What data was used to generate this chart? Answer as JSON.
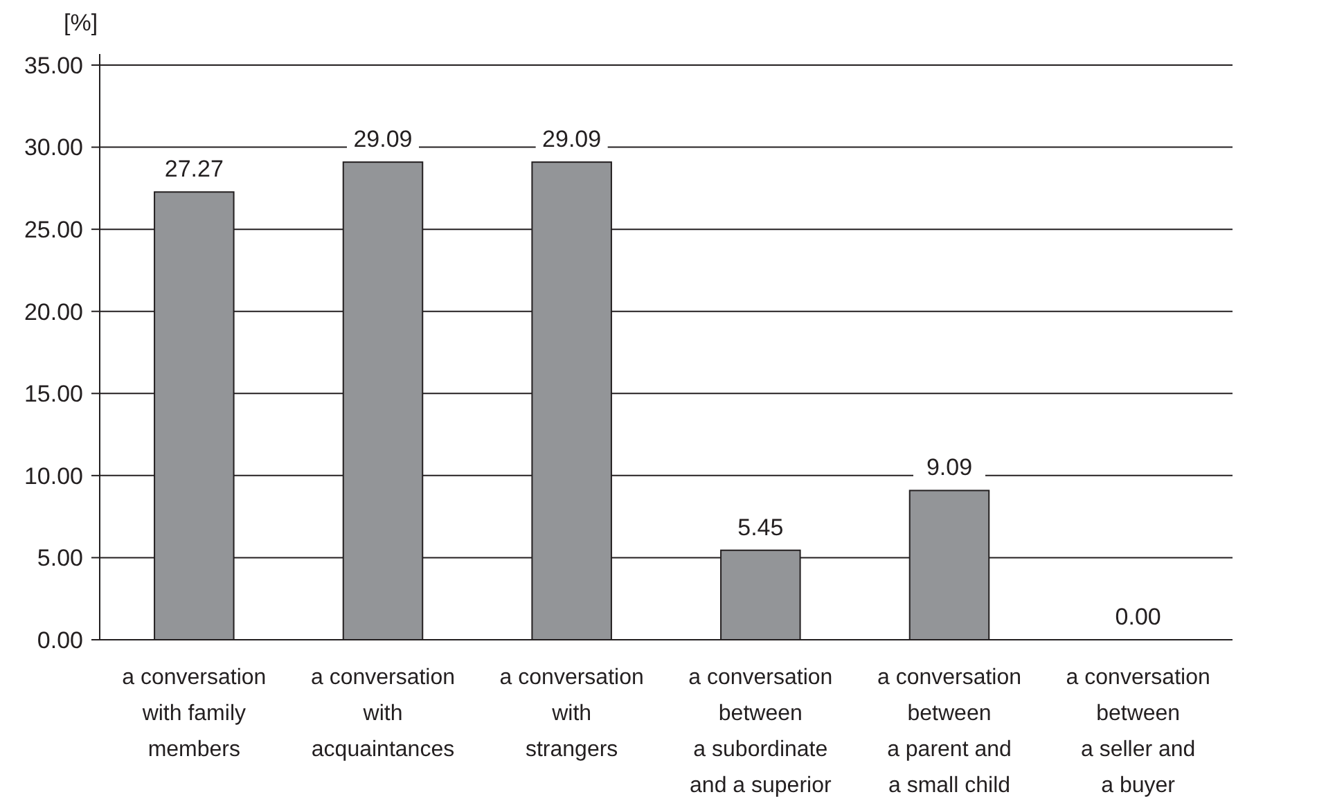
{
  "chart_data": {
    "type": "bar",
    "ylabel": "[%]",
    "categories": [
      "a conversation\nwith family\nmembers",
      "a conversation\nwith\nacquaintances",
      "a conversation\nwith\nstrangers",
      "a conversation\nbetween\na subordinate\nand a superior",
      "a conversation\nbetween\na parent and\na small child",
      "a conversation\nbetween\na seller and\na buyer"
    ],
    "values": [
      27.27,
      29.09,
      29.09,
      5.45,
      9.09,
      0.0
    ],
    "color": "#939598",
    "ylim": [
      0,
      35
    ],
    "yticks": [
      {
        "value": 0,
        "label": "0.00"
      },
      {
        "value": 5,
        "label": "5.00"
      },
      {
        "value": 10,
        "label": "10.00"
      },
      {
        "value": 15,
        "label": "15.00"
      },
      {
        "value": 20,
        "label": "20.00"
      },
      {
        "value": 25,
        "label": "25.00"
      },
      {
        "value": 30,
        "label": "30.00"
      },
      {
        "value": 35,
        "label": "35.00"
      }
    ],
    "value_labels": [
      "27.27",
      "29.09",
      "29.09",
      "5.45",
      "9.09",
      "0.00"
    ],
    "grid": "y"
  }
}
